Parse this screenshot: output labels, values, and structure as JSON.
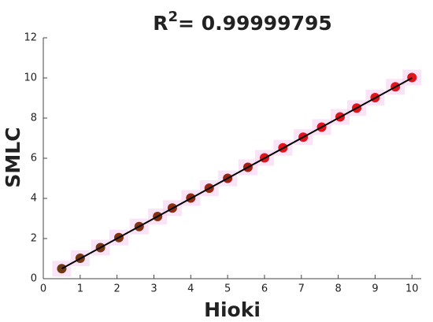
{
  "chart_data": {
    "type": "scatter",
    "title": "R",
    "title_superscript": "2",
    "title_rest": "= 0.99999795",
    "x_label": "Hioki",
    "y_label": "SMLC",
    "xlim": [
      0,
      10.25
    ],
    "ylim": [
      0,
      12
    ],
    "xticks": [
      0,
      1,
      2,
      3,
      4,
      5,
      6,
      7,
      8,
      9,
      10
    ],
    "yticks": [
      0,
      2,
      4,
      6,
      8,
      10,
      12
    ],
    "series": [
      {
        "name": "SMLC",
        "x": [
          0.5,
          1,
          1.55,
          2.05,
          2.6,
          3.1,
          3.5,
          4,
          4.5,
          5,
          5.55,
          6,
          6.5,
          7.05,
          7.55,
          8.05,
          8.5,
          9,
          9.55,
          10
        ],
        "values": [
          0.5,
          1.02,
          1.55,
          2.05,
          2.6,
          3.1,
          3.52,
          4.02,
          4.51,
          5.0,
          5.55,
          6.02,
          6.52,
          7.05,
          7.55,
          8.06,
          8.5,
          9.02,
          9.56,
          10.02
        ],
        "colors": [
          "#6e3a12",
          "#733814",
          "#773614",
          "#7b3414",
          "#803214",
          "#853014",
          "#8a2e14",
          "#902b14",
          "#962814",
          "#9c2414",
          "#a62012",
          "#e0141a",
          "#e0141a",
          "#e0141a",
          "#e0141a",
          "#e0141a",
          "#e0141a",
          "#e0141a",
          "#e0141a",
          "#e0141a"
        ]
      },
      {
        "type": "line",
        "color": "#000000",
        "x": [
          0.5,
          10
        ],
        "values": [
          0.5,
          10
        ]
      }
    ]
  }
}
